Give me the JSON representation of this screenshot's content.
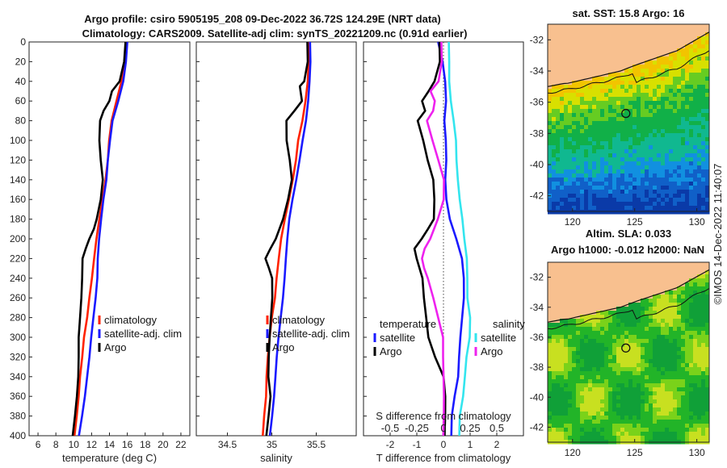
{
  "title": {
    "line1": "Argo profile: csiro 5905195_208 09-Dec-2022 36.72S 124.29E (NRT data)",
    "line2": "Climatology: CARS2009. Satellite-adj clim: synTS_20221209.nc (0.91d earlier)"
  },
  "colors": {
    "argo": "#000000",
    "climatology": "#ff2200",
    "satellite": "#1a1aff",
    "sat_salinity": "#33e5ee",
    "argo_salinity": "#ee22ee",
    "land": "#f8c08f"
  },
  "credit": "©IMOS 14-Dec-2022 11:40:07",
  "chart_data": [
    {
      "type": "line",
      "xlabel": "temperature (deg C)",
      "xlim": [
        5,
        23
      ],
      "ylim": [
        400,
        0
      ],
      "xticks": [
        "6",
        "8",
        "10",
        "12",
        "14",
        "16",
        "18",
        "20",
        "22"
      ],
      "yticks": [
        "0",
        "20",
        "40",
        "60",
        "80",
        "100",
        "120",
        "140",
        "160",
        "180",
        "200",
        "220",
        "240",
        "260",
        "280",
        "300",
        "320",
        "340",
        "360",
        "380",
        "400"
      ],
      "legend": [
        "climatology",
        "satellite-adj. clim",
        "Argo"
      ],
      "series": [
        {
          "name": "climatology",
          "depth": [
            0,
            20,
            40,
            60,
            80,
            100,
            120,
            140,
            160,
            180,
            200,
            220,
            240,
            260,
            280,
            300,
            320,
            340,
            360,
            380,
            400
          ],
          "values": [
            15.9,
            15.7,
            15.3,
            14.8,
            14.3,
            14.0,
            13.8,
            13.5,
            13.2,
            12.9,
            12.6,
            12.3,
            12.0,
            11.7,
            11.5,
            11.2,
            11.0,
            10.7,
            10.5,
            10.3,
            10.1
          ]
        },
        {
          "name": "satellite-adj. clim",
          "depth": [
            0,
            20,
            40,
            60,
            80,
            100,
            120,
            140,
            160,
            180,
            200,
            220,
            240,
            260,
            280,
            300,
            320,
            340,
            360,
            380,
            400
          ],
          "values": [
            16.0,
            15.8,
            15.5,
            15.0,
            14.4,
            14.1,
            13.8,
            13.6,
            13.3,
            13.1,
            12.9,
            12.7,
            12.6,
            12.4,
            12.2,
            12.0,
            11.8,
            11.5,
            11.2,
            10.9,
            10.6
          ]
        },
        {
          "name": "Argo",
          "depth": [
            0,
            20,
            40,
            50,
            60,
            70,
            80,
            100,
            120,
            140,
            160,
            180,
            190,
            200,
            210,
            220,
            240,
            260,
            280,
            300,
            320,
            340,
            360,
            380,
            400
          ],
          "values": [
            15.8,
            15.6,
            15.1,
            14.3,
            14.0,
            13.3,
            13.0,
            12.9,
            13.0,
            13.2,
            13.0,
            12.6,
            12.2,
            11.8,
            11.3,
            11.0,
            10.9,
            10.8,
            10.7,
            10.6,
            10.6,
            10.5,
            10.3,
            10.1,
            9.9
          ]
        }
      ]
    },
    {
      "type": "line",
      "xlabel": "salinity",
      "xlim": [
        34.15,
        35.95
      ],
      "ylim": [
        400,
        0
      ],
      "xticks": [
        "34.5",
        "35",
        "35.5"
      ],
      "legend": [
        "climatology",
        "satellite-adj. clim",
        "Argo"
      ],
      "series": [
        {
          "name": "climatology",
          "depth": [
            0,
            20,
            40,
            60,
            80,
            100,
            120,
            140,
            160,
            180,
            200,
            220,
            240,
            260,
            280,
            300,
            320,
            340,
            360,
            380,
            400
          ],
          "values": [
            35.41,
            35.41,
            35.4,
            35.38,
            35.35,
            35.3,
            35.27,
            35.23,
            35.19,
            35.15,
            35.11,
            35.08,
            35.05,
            35.03,
            35.0,
            34.98,
            34.96,
            34.94,
            34.93,
            34.91,
            34.9
          ]
        },
        {
          "name": "satellite-adj. clim",
          "depth": [
            0,
            20,
            40,
            60,
            80,
            100,
            120,
            140,
            160,
            180,
            200,
            220,
            240,
            260,
            280,
            300,
            320,
            340,
            360,
            380,
            400
          ],
          "values": [
            35.43,
            35.43,
            35.42,
            35.41,
            35.39,
            35.35,
            35.31,
            35.27,
            35.23,
            35.2,
            35.18,
            35.16,
            35.14,
            35.12,
            35.1,
            35.08,
            35.06,
            35.04,
            35.02,
            35.0,
            34.98
          ]
        },
        {
          "name": "Argo",
          "depth": [
            0,
            20,
            40,
            45,
            60,
            70,
            80,
            100,
            120,
            140,
            160,
            180,
            200,
            210,
            220,
            230,
            240,
            260,
            280,
            300,
            320,
            340,
            360,
            380,
            400
          ],
          "values": [
            35.4,
            35.4,
            35.36,
            35.32,
            35.34,
            35.25,
            35.17,
            35.17,
            35.2,
            35.22,
            35.18,
            35.13,
            35.05,
            34.98,
            34.93,
            34.97,
            35.0,
            35.0,
            34.99,
            34.98,
            34.97,
            34.96,
            34.98,
            34.96,
            34.94
          ]
        }
      ]
    },
    {
      "type": "line",
      "xlabel": "T difference from climatology",
      "xlabel2": "S difference from climatology",
      "xlim": [
        -3,
        3
      ],
      "ylim": [
        400,
        0
      ],
      "xticks": [
        "-2",
        "-1",
        "0",
        "1",
        "2"
      ],
      "xticks2": [
        "-0.5",
        "-0.25",
        "0",
        "0.25",
        "0.5"
      ],
      "legend_groups": {
        "temperature": {
          "header": "temperature",
          "items": [
            "satellite",
            "Argo"
          ]
        },
        "salinity": {
          "header": "salinity",
          "items": [
            "satellite",
            "Argo"
          ]
        }
      },
      "series": [
        {
          "name": "temperature satellite",
          "depth": [
            0,
            20,
            40,
            60,
            80,
            100,
            120,
            140,
            160,
            180,
            200,
            220,
            240,
            260,
            280,
            300,
            320,
            340,
            360,
            380,
            400
          ],
          "values": [
            -0.2,
            -0.05,
            0.05,
            0.1,
            0.05,
            0.1,
            0.1,
            0.05,
            0.1,
            0.25,
            0.5,
            0.7,
            0.75,
            0.75,
            0.7,
            0.65,
            0.6,
            0.55,
            0.4,
            0.3,
            0.3
          ]
        },
        {
          "name": "temperature Argo",
          "depth": [
            0,
            20,
            40,
            50,
            60,
            70,
            80,
            100,
            120,
            140,
            160,
            180,
            190,
            200,
            210,
            220,
            240,
            260,
            280,
            300,
            320,
            340,
            360,
            380,
            400
          ],
          "values": [
            -0.15,
            -0.15,
            -0.35,
            -0.55,
            -0.8,
            -0.7,
            -0.95,
            -0.75,
            -0.6,
            -0.4,
            -0.35,
            -0.35,
            -0.6,
            -0.8,
            -1.1,
            -1.0,
            -0.8,
            -0.75,
            -0.65,
            -0.55,
            -0.3,
            0.0,
            0.05,
            0.05,
            0.05
          ]
        },
        {
          "name": "salinity satellite",
          "depth": [
            0,
            20,
            40,
            60,
            80,
            100,
            120,
            140,
            160,
            180,
            200,
            220,
            240,
            260,
            280,
            300,
            320,
            340,
            360,
            380,
            400
          ],
          "values": [
            0.05,
            0.05,
            0.05,
            0.07,
            0.1,
            0.12,
            0.12,
            0.13,
            0.15,
            0.18,
            0.2,
            0.22,
            0.22,
            0.22,
            0.25,
            0.25,
            0.22,
            0.2,
            0.18,
            0.15,
            0.15
          ]
        },
        {
          "name": "salinity Argo",
          "depth": [
            0,
            20,
            40,
            50,
            60,
            70,
            80,
            100,
            120,
            140,
            160,
            180,
            200,
            210,
            220,
            230,
            240,
            260,
            280,
            300,
            320,
            340,
            360,
            380,
            400
          ],
          "values": [
            -0.02,
            -0.02,
            -0.05,
            -0.12,
            -0.08,
            -0.1,
            -0.15,
            -0.1,
            -0.05,
            0.0,
            0.0,
            -0.05,
            -0.12,
            -0.18,
            -0.2,
            -0.18,
            -0.15,
            -0.1,
            -0.05,
            0.0,
            0.0,
            0.0,
            0.0,
            0.0,
            0.0
          ]
        }
      ]
    },
    {
      "type": "heatmap",
      "title": "sat. SST: 15.8 Argo: 16",
      "xticks": [
        "120",
        "125",
        "130"
      ],
      "yticks": [
        "-32",
        "-34",
        "-36",
        "-38",
        "-40",
        "-42"
      ],
      "xlim": [
        118,
        131
      ],
      "ylim": [
        -43,
        -31
      ],
      "marker": {
        "lon": 124.29,
        "lat": -36.72
      }
    },
    {
      "type": "heatmap",
      "title1": "Altim. SLA: 0.033",
      "title2": "Argo h1000: -0.012 h2000: NaN",
      "xticks": [
        "120",
        "125",
        "130"
      ],
      "yticks": [
        "-32",
        "-34",
        "-36",
        "-38",
        "-40",
        "-42"
      ],
      "xlim": [
        118,
        131
      ],
      "ylim": [
        -43,
        -31
      ],
      "marker": {
        "lon": 124.29,
        "lat": -36.72
      }
    }
  ]
}
